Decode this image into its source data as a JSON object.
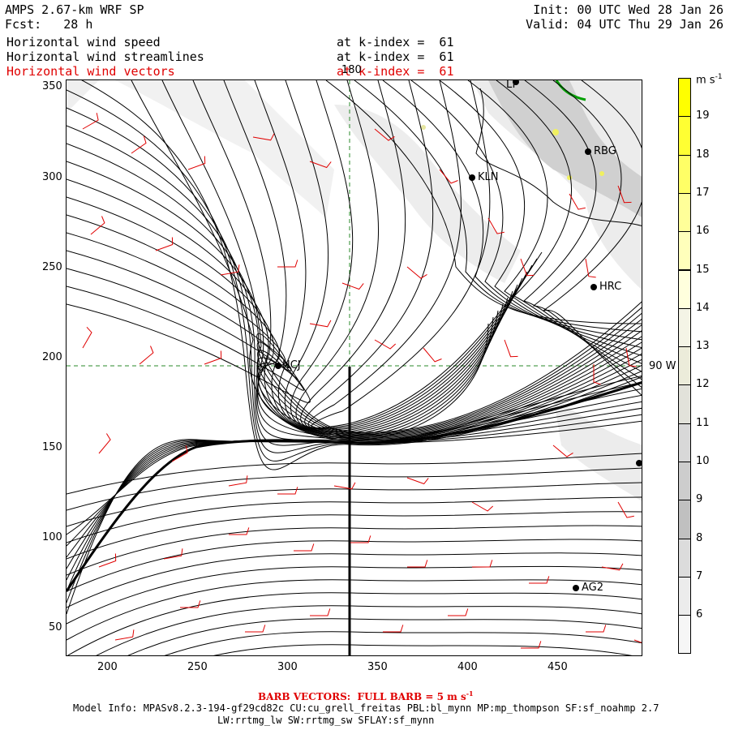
{
  "header": {
    "title": "AMPS 2.67-km WRF SP",
    "fcst": "Fcst:   28 h",
    "init": "Init: 00 UTC Wed 28 Jan 26",
    "valid": "Valid: 04 UTC Thu 29 Jan 26"
  },
  "fields": [
    {
      "name": "Horizontal wind speed",
      "level": "at k-index =  61"
    },
    {
      "name": "Horizontal wind streamlines",
      "level": "at k-index =  61"
    },
    {
      "name": "Horizontal wind vectors",
      "level": "at k-index =  61"
    }
  ],
  "x_ticks": [
    "200",
    "250",
    "300",
    "350",
    "400",
    "450"
  ],
  "y_ticks": [
    "350",
    "300",
    "250",
    "200",
    "150",
    "100",
    "50"
  ],
  "grid_labels": {
    "lon": "180",
    "lat": "90 W"
  },
  "stations": [
    {
      "id": "NCJ",
      "label": "NCJ"
    },
    {
      "id": "KLN",
      "label": "KLN"
    },
    {
      "id": "RBG",
      "label": "RBG"
    },
    {
      "id": "HRC",
      "label": "HRC"
    },
    {
      "id": "AG2",
      "label": "AG2"
    },
    {
      "id": "LT",
      "label": "LT"
    }
  ],
  "colorbar": {
    "unit": "m s",
    "unit_exp": "-1",
    "labels": [
      "19",
      "18",
      "17",
      "16",
      "15",
      "14",
      "13",
      "12",
      "11",
      "10",
      "9",
      "8",
      "7",
      "6"
    ],
    "colors": [
      "#ffff00",
      "#ffff33",
      "#ffff66",
      "#ffff99",
      "#ffffbb",
      "#ffffdd",
      "#f4f4e6",
      "#ececda",
      "#e2e2da",
      "#d8d8d8",
      "#cdcdcd",
      "#c0c0c0",
      "#dcdcdc",
      "#ececec",
      "#f6f6f6"
    ]
  },
  "footer": {
    "barb": "BARB VECTORS:  FULL BARB = 5 m s",
    "barb_exp": "-1",
    "model1": "Model Info: MPASv8.2.3-194-gf29cd82c CU:cu_grell_freitas PBL:bl_mynn MP:mp_thompson SF:sf_noahmp 2.7",
    "model2": "LW:rrtmg_lw SW:rrtmg_sw SFLAY:sf_mynn"
  },
  "colors": {
    "vectors": "#e00000",
    "streamlines": "#000000",
    "grid": "#2a8a2a",
    "coast": "#00a000"
  }
}
